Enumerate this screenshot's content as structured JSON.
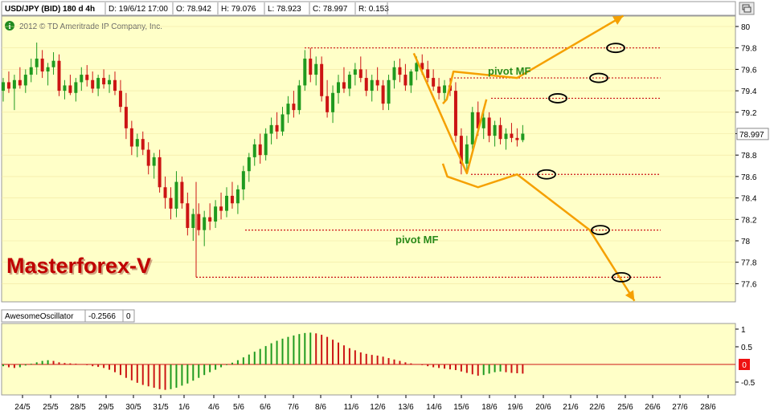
{
  "header": {
    "symbol": "USD/JPY (BID) 180 d 4h",
    "date": "D: 19/6/12 17:00",
    "open": "O: 78.942",
    "high": "H: 79.076",
    "low": "L: 78.923",
    "close": "C: 78.997",
    "range": "R: 0.153"
  },
  "copyright": "2012 © TD Ameritrade IP Company, Inc.",
  "watermark": "Masterforex-V",
  "oscillator": {
    "name": "AwesomeOscillator",
    "value": "-0.2566",
    "extra": "0",
    "zero_label": "0"
  },
  "icons": [
    "info-icon",
    "window-restore-icon"
  ],
  "colors": {
    "up_candle": "#1f9a1f",
    "down_candle": "#cc1414",
    "level_line": "#cc1414",
    "projection": "#f5a000",
    "annotation": "#2a8a1a",
    "watermark": "#c00000"
  },
  "chart_data": {
    "type": "candlestick",
    "y_axis": {
      "ticks": [
        "80",
        "79.8",
        "79.6",
        "79.4",
        "79.2",
        "79",
        "78.8",
        "78.6",
        "78.4",
        "78.2",
        "78",
        "77.8",
        "77.6"
      ],
      "range": [
        77.4,
        80.1
      ],
      "last_price": "78.997"
    },
    "x_axis": {
      "ticks": [
        "24/5",
        "25/5",
        "28/5",
        "29/5",
        "30/5",
        "31/5",
        "1/6",
        "4/6",
        "5/6",
        "6/6",
        "7/6",
        "8/6",
        "11/6",
        "12/6",
        "13/6",
        "14/6",
        "15/6",
        "18/6",
        "19/6",
        "20/6",
        "21/6",
        "22/6",
        "25/6",
        "26/6",
        "27/6",
        "28/6"
      ]
    },
    "candles": [
      [
        79.4,
        79.52,
        79.3,
        79.48
      ],
      [
        79.48,
        79.58,
        79.38,
        79.42
      ],
      [
        79.42,
        79.55,
        79.22,
        79.5
      ],
      [
        79.5,
        79.62,
        79.42,
        79.45
      ],
      [
        79.45,
        79.6,
        79.38,
        79.55
      ],
      [
        79.55,
        79.7,
        79.48,
        79.62
      ],
      [
        79.62,
        79.85,
        79.55,
        79.7
      ],
      [
        79.7,
        79.78,
        79.52,
        79.58
      ],
      [
        79.58,
        79.66,
        79.45,
        79.62
      ],
      [
        79.62,
        79.76,
        79.55,
        79.68
      ],
      [
        79.68,
        79.74,
        79.35,
        79.4
      ],
      [
        79.4,
        79.5,
        79.32,
        79.45
      ],
      [
        79.45,
        79.55,
        79.36,
        79.38
      ],
      [
        79.38,
        79.52,
        79.3,
        79.48
      ],
      [
        79.48,
        79.62,
        79.4,
        79.55
      ],
      [
        79.55,
        79.64,
        79.44,
        79.5
      ],
      [
        79.5,
        79.58,
        79.38,
        79.42
      ],
      [
        79.42,
        79.55,
        79.35,
        79.52
      ],
      [
        79.52,
        79.6,
        79.42,
        79.46
      ],
      [
        79.46,
        79.55,
        79.38,
        79.5
      ],
      [
        79.5,
        79.58,
        79.36,
        79.4
      ],
      [
        79.4,
        79.5,
        79.2,
        79.25
      ],
      [
        79.25,
        79.38,
        78.95,
        79.05
      ],
      [
        79.05,
        79.12,
        78.8,
        78.88
      ],
      [
        78.88,
        79.0,
        78.78,
        78.95
      ],
      [
        78.95,
        79.02,
        78.8,
        78.85
      ],
      [
        78.85,
        78.92,
        78.62,
        78.7
      ],
      [
        78.7,
        78.82,
        78.58,
        78.78
      ],
      [
        78.78,
        78.85,
        78.45,
        78.5
      ],
      [
        78.5,
        78.6,
        78.3,
        78.4
      ],
      [
        78.4,
        78.5,
        78.2,
        78.3
      ],
      [
        78.3,
        78.65,
        78.22,
        78.55
      ],
      [
        78.55,
        78.6,
        78.3,
        78.35
      ],
      [
        78.35,
        78.45,
        78.05,
        78.12
      ],
      [
        78.12,
        78.3,
        78.0,
        78.25
      ],
      [
        78.25,
        78.35,
        78.05,
        78.1
      ],
      [
        78.1,
        78.28,
        77.95,
        78.22
      ],
      [
        78.22,
        78.35,
        78.1,
        78.18
      ],
      [
        78.18,
        78.38,
        78.12,
        78.32
      ],
      [
        78.32,
        78.45,
        78.2,
        78.28
      ],
      [
        78.28,
        78.5,
        78.22,
        78.42
      ],
      [
        78.42,
        78.55,
        78.3,
        78.35
      ],
      [
        78.35,
        78.52,
        78.25,
        78.48
      ],
      [
        78.48,
        78.7,
        78.38,
        78.65
      ],
      [
        78.65,
        78.82,
        78.55,
        78.78
      ],
      [
        78.78,
        78.95,
        78.7,
        78.9
      ],
      [
        78.9,
        79.0,
        78.72,
        78.8
      ],
      [
        78.8,
        79.05,
        78.75,
        79.0
      ],
      [
        79.0,
        79.15,
        78.9,
        79.08
      ],
      [
        79.08,
        79.2,
        78.95,
        79.02
      ],
      [
        79.02,
        79.25,
        78.98,
        79.18
      ],
      [
        79.18,
        79.35,
        79.1,
        79.28
      ],
      [
        79.28,
        79.4,
        79.15,
        79.22
      ],
      [
        79.22,
        79.5,
        79.18,
        79.45
      ],
      [
        79.45,
        79.78,
        79.4,
        79.7
      ],
      [
        79.7,
        79.8,
        79.48,
        79.55
      ],
      [
        79.55,
        79.72,
        79.45,
        79.65
      ],
      [
        79.65,
        79.72,
        79.3,
        79.35
      ],
      [
        79.35,
        79.5,
        79.15,
        79.2
      ],
      [
        79.2,
        79.45,
        79.1,
        79.38
      ],
      [
        79.38,
        79.55,
        79.28,
        79.48
      ],
      [
        79.48,
        79.62,
        79.38,
        79.42
      ],
      [
        79.42,
        79.58,
        79.35,
        79.55
      ],
      [
        79.55,
        79.66,
        79.45,
        79.6
      ],
      [
        79.6,
        79.72,
        79.48,
        79.52
      ],
      [
        79.52,
        79.6,
        79.35,
        79.4
      ],
      [
        79.4,
        79.55,
        79.3,
        79.5
      ],
      [
        79.5,
        79.62,
        79.4,
        79.45
      ],
      [
        79.45,
        79.5,
        79.22,
        79.28
      ],
      [
        79.28,
        79.55,
        79.22,
        79.5
      ],
      [
        79.5,
        79.68,
        79.42,
        79.62
      ],
      [
        79.62,
        79.7,
        79.48,
        79.55
      ],
      [
        79.55,
        79.65,
        79.4,
        79.45
      ],
      [
        79.45,
        79.6,
        79.38,
        79.58
      ],
      [
        79.58,
        79.72,
        79.5,
        79.66
      ],
      [
        79.66,
        79.74,
        79.55,
        79.6
      ],
      [
        79.6,
        79.68,
        79.48,
        79.52
      ],
      [
        79.52,
        79.6,
        79.4,
        79.44
      ],
      [
        79.44,
        79.52,
        79.32,
        79.38
      ],
      [
        79.38,
        79.5,
        79.3,
        79.45
      ],
      [
        79.45,
        79.52,
        79.35,
        79.4
      ],
      [
        79.4,
        79.48,
        78.92,
        78.98
      ],
      [
        78.98,
        79.05,
        78.62,
        78.72
      ],
      [
        78.72,
        78.98,
        78.65,
        78.9
      ],
      [
        78.9,
        79.25,
        78.85,
        79.2
      ],
      [
        79.2,
        79.3,
        78.98,
        79.05
      ],
      [
        79.05,
        79.22,
        78.95,
        79.15
      ],
      [
        79.15,
        79.2,
        78.92,
        78.98
      ],
      [
        78.98,
        79.12,
        78.88,
        79.08
      ],
      [
        79.08,
        79.15,
        78.9,
        78.95
      ],
      [
        78.95,
        79.05,
        78.85,
        79.0
      ],
      [
        79.0,
        79.1,
        78.92,
        78.96
      ],
      [
        78.96,
        79.05,
        78.88,
        78.94
      ],
      [
        78.94,
        79.08,
        78.92,
        79.0
      ]
    ],
    "levels": [
      79.8,
      79.52,
      79.33,
      78.62,
      78.1,
      77.66
    ],
    "annotations": [
      "pivot MF",
      "pivot MF"
    ],
    "projection_up": [
      [
        78.7,
        79.28
      ],
      [
        79.4,
        79.32
      ],
      [
        80.6,
        79.58
      ],
      [
        92.0,
        79.52
      ],
      [
        111.0,
        80.1
      ]
    ],
    "projection_down": [
      [
        78.7,
        78.72
      ],
      [
        79.5,
        78.6
      ],
      [
        85.0,
        78.5
      ],
      [
        92.0,
        78.62
      ],
      [
        105.0,
        78.1
      ],
      [
        113.0,
        77.44
      ]
    ],
    "oscillator_ticks": [
      "1",
      "0.5",
      "-0.5"
    ],
    "oscillator_values": [
      -0.05,
      -0.08,
      -0.1,
      -0.08,
      -0.03,
      0.02,
      0.06,
      0.1,
      0.12,
      0.1,
      0.06,
      0.04,
      0.03,
      0.02,
      0.01,
      -0.02,
      -0.05,
      -0.07,
      -0.1,
      -0.15,
      -0.22,
      -0.3,
      -0.38,
      -0.45,
      -0.52,
      -0.58,
      -0.62,
      -0.66,
      -0.7,
      -0.72,
      -0.7,
      -0.66,
      -0.6,
      -0.54,
      -0.46,
      -0.38,
      -0.3,
      -0.22,
      -0.15,
      -0.08,
      -0.02,
      0.05,
      0.12,
      0.2,
      0.28,
      0.36,
      0.44,
      0.52,
      0.6,
      0.67,
      0.73,
      0.78,
      0.82,
      0.86,
      0.89,
      0.9,
      0.88,
      0.84,
      0.78,
      0.7,
      0.62,
      0.54,
      0.46,
      0.4,
      0.34,
      0.3,
      0.27,
      0.25,
      0.22,
      0.18,
      0.14,
      0.1,
      0.06,
      0.03,
      0.01,
      -0.02,
      -0.05,
      -0.08,
      -0.1,
      -0.12,
      -0.14,
      -0.16,
      -0.2,
      -0.24,
      -0.28,
      -0.32,
      -0.3,
      -0.26,
      -0.22,
      -0.2,
      -0.22,
      -0.24,
      -0.25,
      -0.26
    ]
  }
}
